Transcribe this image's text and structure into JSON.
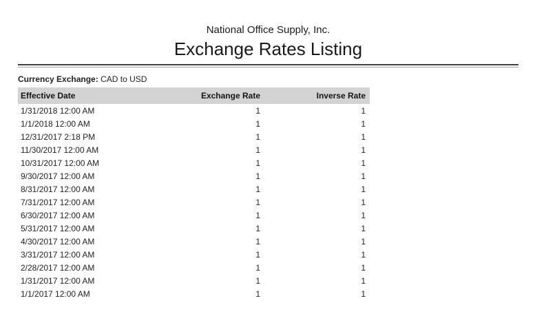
{
  "report": {
    "company_name": "National Office Supply, Inc.",
    "title": "Exchange Rates Listing",
    "filter_label": "Currency Exchange:",
    "filter_value": "CAD to USD"
  },
  "table": {
    "columns": [
      {
        "key": "effective_date",
        "label": "Effective Date",
        "align": "left"
      },
      {
        "key": "exchange_rate",
        "label": "Exchange Rate",
        "align": "right"
      },
      {
        "key": "inverse_rate",
        "label": "Inverse Rate",
        "align": "right"
      }
    ],
    "rows": [
      {
        "effective_date": "1/31/2018 12:00 AM",
        "exchange_rate": "1",
        "inverse_rate": "1"
      },
      {
        "effective_date": "1/1/2018 12:00 AM",
        "exchange_rate": "1",
        "inverse_rate": "1"
      },
      {
        "effective_date": "12/31/2017 2:18 PM",
        "exchange_rate": "1",
        "inverse_rate": "1"
      },
      {
        "effective_date": "11/30/2017 12:00 AM",
        "exchange_rate": "1",
        "inverse_rate": "1"
      },
      {
        "effective_date": "10/31/2017 12:00 AM",
        "exchange_rate": "1",
        "inverse_rate": "1"
      },
      {
        "effective_date": "9/30/2017 12:00 AM",
        "exchange_rate": "1",
        "inverse_rate": "1"
      },
      {
        "effective_date": "8/31/2017 12:00 AM",
        "exchange_rate": "1",
        "inverse_rate": "1"
      },
      {
        "effective_date": "7/31/2017 12:00 AM",
        "exchange_rate": "1",
        "inverse_rate": "1"
      },
      {
        "effective_date": "6/30/2017 12:00 AM",
        "exchange_rate": "1",
        "inverse_rate": "1"
      },
      {
        "effective_date": "5/31/2017 12:00 AM",
        "exchange_rate": "1",
        "inverse_rate": "1"
      },
      {
        "effective_date": "4/30/2017 12:00 AM",
        "exchange_rate": "1",
        "inverse_rate": "1"
      },
      {
        "effective_date": "3/31/2017 12:00 AM",
        "exchange_rate": "1",
        "inverse_rate": "1"
      },
      {
        "effective_date": "2/28/2017 12:00 AM",
        "exchange_rate": "1",
        "inverse_rate": "1"
      },
      {
        "effective_date": "1/31/2017 12:00 AM",
        "exchange_rate": "1",
        "inverse_rate": "1"
      },
      {
        "effective_date": "1/1/2017 12:00 AM",
        "exchange_rate": "1",
        "inverse_rate": "1"
      }
    ]
  },
  "colors": {
    "header_bg": "#d3d3d3",
    "body_text": "#1f1f1f",
    "rule_dark": "#3f3f3f",
    "rule_light": "#9c9c9c"
  }
}
